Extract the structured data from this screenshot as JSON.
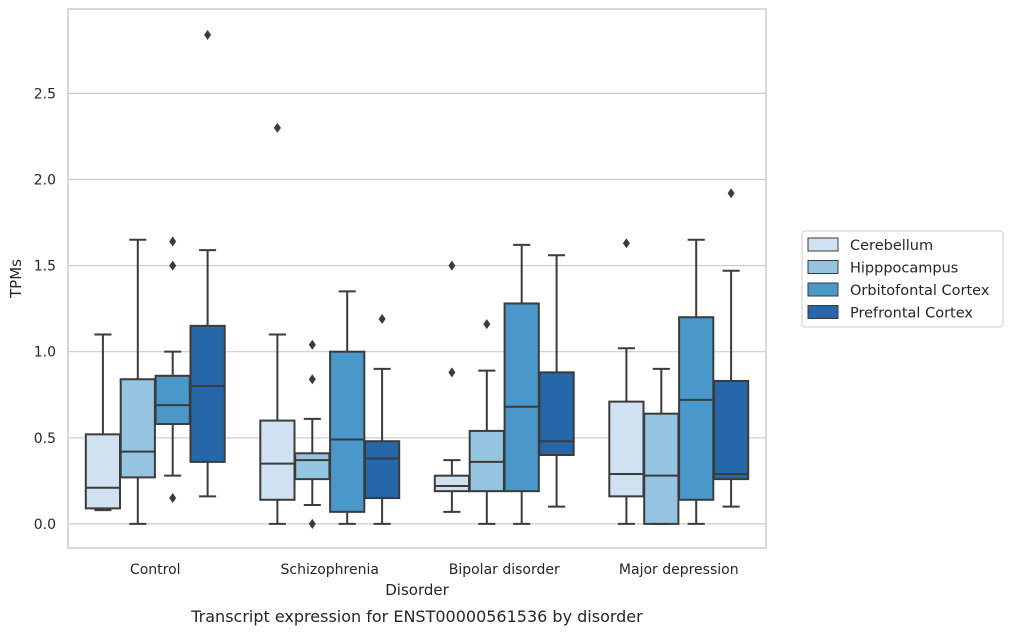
{
  "caption": "Transcript expression for ENST00000561536 by disorder",
  "chart_data": {
    "type": "box",
    "title": "",
    "xlabel": "Disorder",
    "ylabel": "TPMs",
    "categories": [
      "Control",
      "Schizophrenia",
      "Bipolar disorder",
      "Major depression"
    ],
    "ylim": [
      -0.14,
      2.99
    ],
    "yticks": [
      0.0,
      0.5,
      1.0,
      1.5,
      2.0,
      2.5
    ],
    "ytick_labels": [
      "0.0",
      "0.5",
      "1.0",
      "1.5",
      "2.0",
      "2.5"
    ],
    "grid": "horizontal",
    "legend_position": "right",
    "series": [
      {
        "name": "Cerebellum",
        "color": "#d0e1f2",
        "boxes": [
          {
            "category": "Control",
            "whisker_low": 0.08,
            "q1": 0.09,
            "median": 0.21,
            "q3": 0.52,
            "whisker_high": 1.1,
            "outliers": []
          },
          {
            "category": "Schizophrenia",
            "whisker_low": 0.0,
            "q1": 0.14,
            "median": 0.35,
            "q3": 0.6,
            "whisker_high": 1.1,
            "outliers": [
              2.3
            ]
          },
          {
            "category": "Bipolar disorder",
            "whisker_low": 0.07,
            "q1": 0.19,
            "median": 0.22,
            "q3": 0.28,
            "whisker_high": 0.37,
            "outliers": [
              0.88,
              1.5
            ]
          },
          {
            "category": "Major depression",
            "whisker_low": 0.0,
            "q1": 0.16,
            "median": 0.29,
            "q3": 0.71,
            "whisker_high": 1.02,
            "outliers": [
              1.63
            ]
          }
        ]
      },
      {
        "name": "Hipppocampus",
        "color": "#94c4df",
        "boxes": [
          {
            "category": "Control",
            "whisker_low": 0.0,
            "q1": 0.27,
            "median": 0.42,
            "q3": 0.84,
            "whisker_high": 1.65,
            "outliers": []
          },
          {
            "category": "Schizophrenia",
            "whisker_low": 0.11,
            "q1": 0.26,
            "median": 0.37,
            "q3": 0.41,
            "whisker_high": 0.61,
            "outliers": [
              0.0,
              0.84,
              1.04
            ]
          },
          {
            "category": "Bipolar disorder",
            "whisker_low": 0.0,
            "q1": 0.19,
            "median": 0.36,
            "q3": 0.54,
            "whisker_high": 0.89,
            "outliers": [
              1.16
            ]
          },
          {
            "category": "Major depression",
            "whisker_low": 0.0,
            "q1": 0.0,
            "median": 0.28,
            "q3": 0.64,
            "whisker_high": 0.9,
            "outliers": []
          }
        ]
      },
      {
        "name": "Orbitofontal Cortex",
        "color": "#4a98c9",
        "boxes": [
          {
            "category": "Control",
            "whisker_low": 0.28,
            "q1": 0.58,
            "median": 0.69,
            "q3": 0.86,
            "whisker_high": 1.0,
            "outliers": [
              0.15,
              1.5,
              1.64
            ]
          },
          {
            "category": "Schizophrenia",
            "whisker_low": 0.0,
            "q1": 0.07,
            "median": 0.49,
            "q3": 1.0,
            "whisker_high": 1.35,
            "outliers": []
          },
          {
            "category": "Bipolar disorder",
            "whisker_low": 0.0,
            "q1": 0.19,
            "median": 0.68,
            "q3": 1.28,
            "whisker_high": 1.62,
            "outliers": []
          },
          {
            "category": "Major depression",
            "whisker_low": 0.0,
            "q1": 0.14,
            "median": 0.72,
            "q3": 1.2,
            "whisker_high": 1.65,
            "outliers": []
          }
        ]
      },
      {
        "name": "Prefrontal Cortex",
        "color": "#2667a9",
        "boxes": [
          {
            "category": "Control",
            "whisker_low": 0.16,
            "q1": 0.36,
            "median": 0.8,
            "q3": 1.15,
            "whisker_high": 1.59,
            "outliers": [
              2.84
            ]
          },
          {
            "category": "Schizophrenia",
            "whisker_low": 0.0,
            "q1": 0.15,
            "median": 0.38,
            "q3": 0.48,
            "whisker_high": 0.9,
            "outliers": [
              1.19
            ]
          },
          {
            "category": "Bipolar disorder",
            "whisker_low": 0.1,
            "q1": 0.4,
            "median": 0.48,
            "q3": 0.88,
            "whisker_high": 1.56,
            "outliers": []
          },
          {
            "category": "Major depression",
            "whisker_low": 0.1,
            "q1": 0.26,
            "median": 0.29,
            "q3": 0.83,
            "whisker_high": 1.47,
            "outliers": [
              1.92
            ]
          }
        ]
      }
    ]
  }
}
